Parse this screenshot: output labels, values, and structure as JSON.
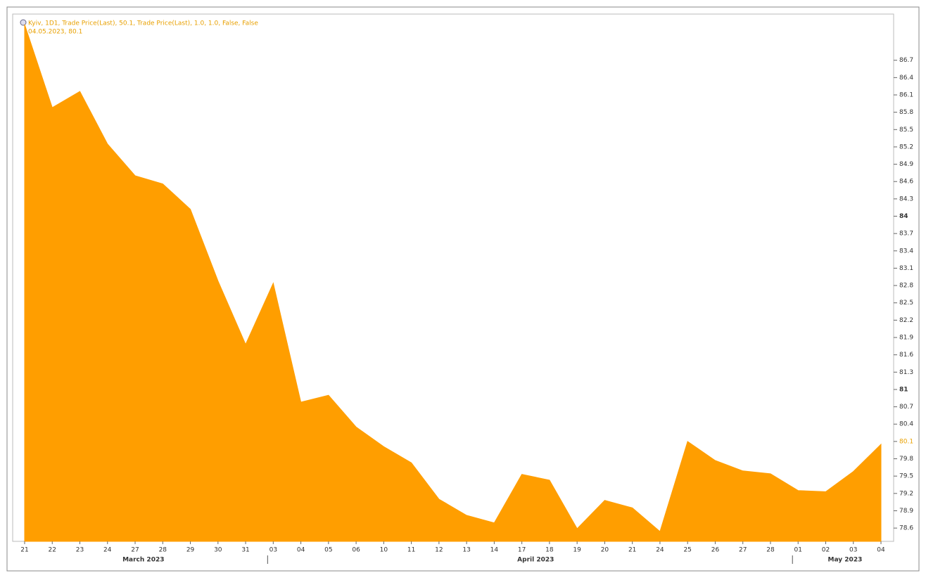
{
  "chart_data": {
    "type": "area",
    "legend_lines": [
      "Kyiv, 1D1, Trade Price(Last), 50.1, Trade Price(Last), 1.0, 1.0, False, False",
      "04.05.2023, 80.1"
    ],
    "categories": [
      "21",
      "22",
      "23",
      "24",
      "27",
      "28",
      "29",
      "30",
      "31",
      "03",
      "04",
      "05",
      "06",
      "10",
      "11",
      "12",
      "13",
      "14",
      "17",
      "18",
      "19",
      "20",
      "21",
      "24",
      "25",
      "26",
      "27",
      "28",
      "01",
      "02",
      "03",
      "04"
    ],
    "months": [
      "March 2023",
      "April 2023",
      "May 2023"
    ],
    "series": [
      {
        "name": "Trade Price(Last)",
        "color": "#ff9e00",
        "values": [
          87.32,
          85.88,
          86.16,
          85.25,
          84.7,
          84.56,
          84.12,
          82.88,
          81.78,
          82.84,
          80.78,
          80.9,
          80.35,
          80.01,
          79.73,
          79.1,
          78.82,
          78.69,
          79.53,
          79.43,
          78.59,
          79.08,
          78.95,
          78.54,
          80.1,
          79.77,
          79.59,
          79.54,
          79.25,
          79.23,
          79.58,
          80.05
        ]
      }
    ],
    "ylim": [
      78.37,
      87.5
    ],
    "yticks": [
      86.7,
      86.4,
      86.1,
      85.8,
      85.5,
      85.2,
      84.9,
      84.6,
      84.3,
      84,
      83.7,
      83.4,
      83.1,
      82.8,
      82.5,
      82.2,
      81.9,
      81.6,
      81.3,
      81,
      80.7,
      80.4,
      80.1,
      79.8,
      79.5,
      79.2,
      78.9,
      78.6
    ],
    "highlight_tick_color": "#e8a000",
    "grid": false
  }
}
